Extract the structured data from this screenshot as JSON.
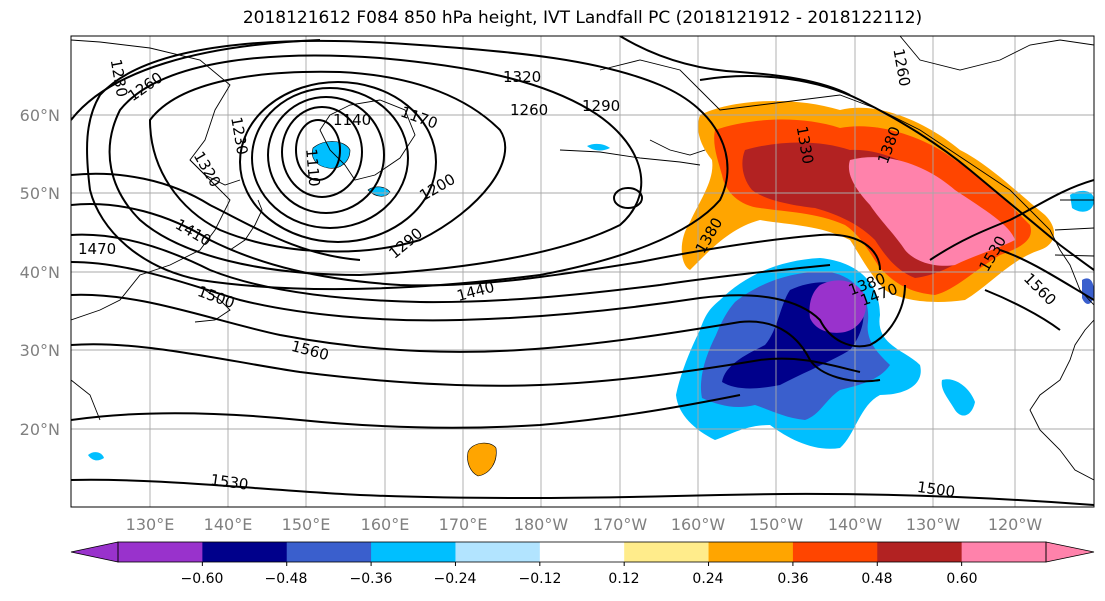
{
  "title": "2018121612 F084 850 hPa height, IVT Landfall PC (2018121912 - 2018122112)",
  "lat_labels": [
    "60°N",
    "50°N",
    "40°N",
    "30°N",
    "20°N"
  ],
  "lon_labels": [
    "130°E",
    "140°E",
    "150°E",
    "160°E",
    "170°E",
    "180°W",
    "170°W",
    "160°W",
    "150°W",
    "140°W",
    "130°W",
    "120°W"
  ],
  "contour_labels": [
    "1230",
    "1260",
    "1320",
    "1290",
    "1260",
    "1140",
    "1170",
    "1110",
    "1230",
    "1320",
    "1200",
    "1410",
    "1290",
    "1470",
    "1500",
    "1440",
    "1380",
    "1560",
    "1330",
    "1380",
    "1530",
    "1560",
    "1470",
    "1530",
    "1500",
    "1260",
    "1380"
  ],
  "colorbar": {
    "labels": [
      "−0.60",
      "−0.48",
      "−0.36",
      "−0.24",
      "−0.12",
      "0.12",
      "0.24",
      "0.36",
      "0.48",
      "0.60"
    ],
    "colors": [
      "#9932CC",
      "#00008B",
      "#3A5FCD",
      "#00BFFF",
      "#B2E4FF",
      "#FFFFFF",
      "#FFEC8B",
      "#FFA500",
      "#FF4500",
      "#B22222",
      "#FF82AB"
    ]
  },
  "colors": {
    "pos_low": "#FFA500",
    "pos_mid": "#FF4500",
    "pos_high": "#B22222",
    "pos_max": "#FF82AB",
    "neg_low": "#00BFFF",
    "neg_mid": "#3A5FCD",
    "neg_high": "#00008B",
    "neg_max": "#9932CC"
  }
}
